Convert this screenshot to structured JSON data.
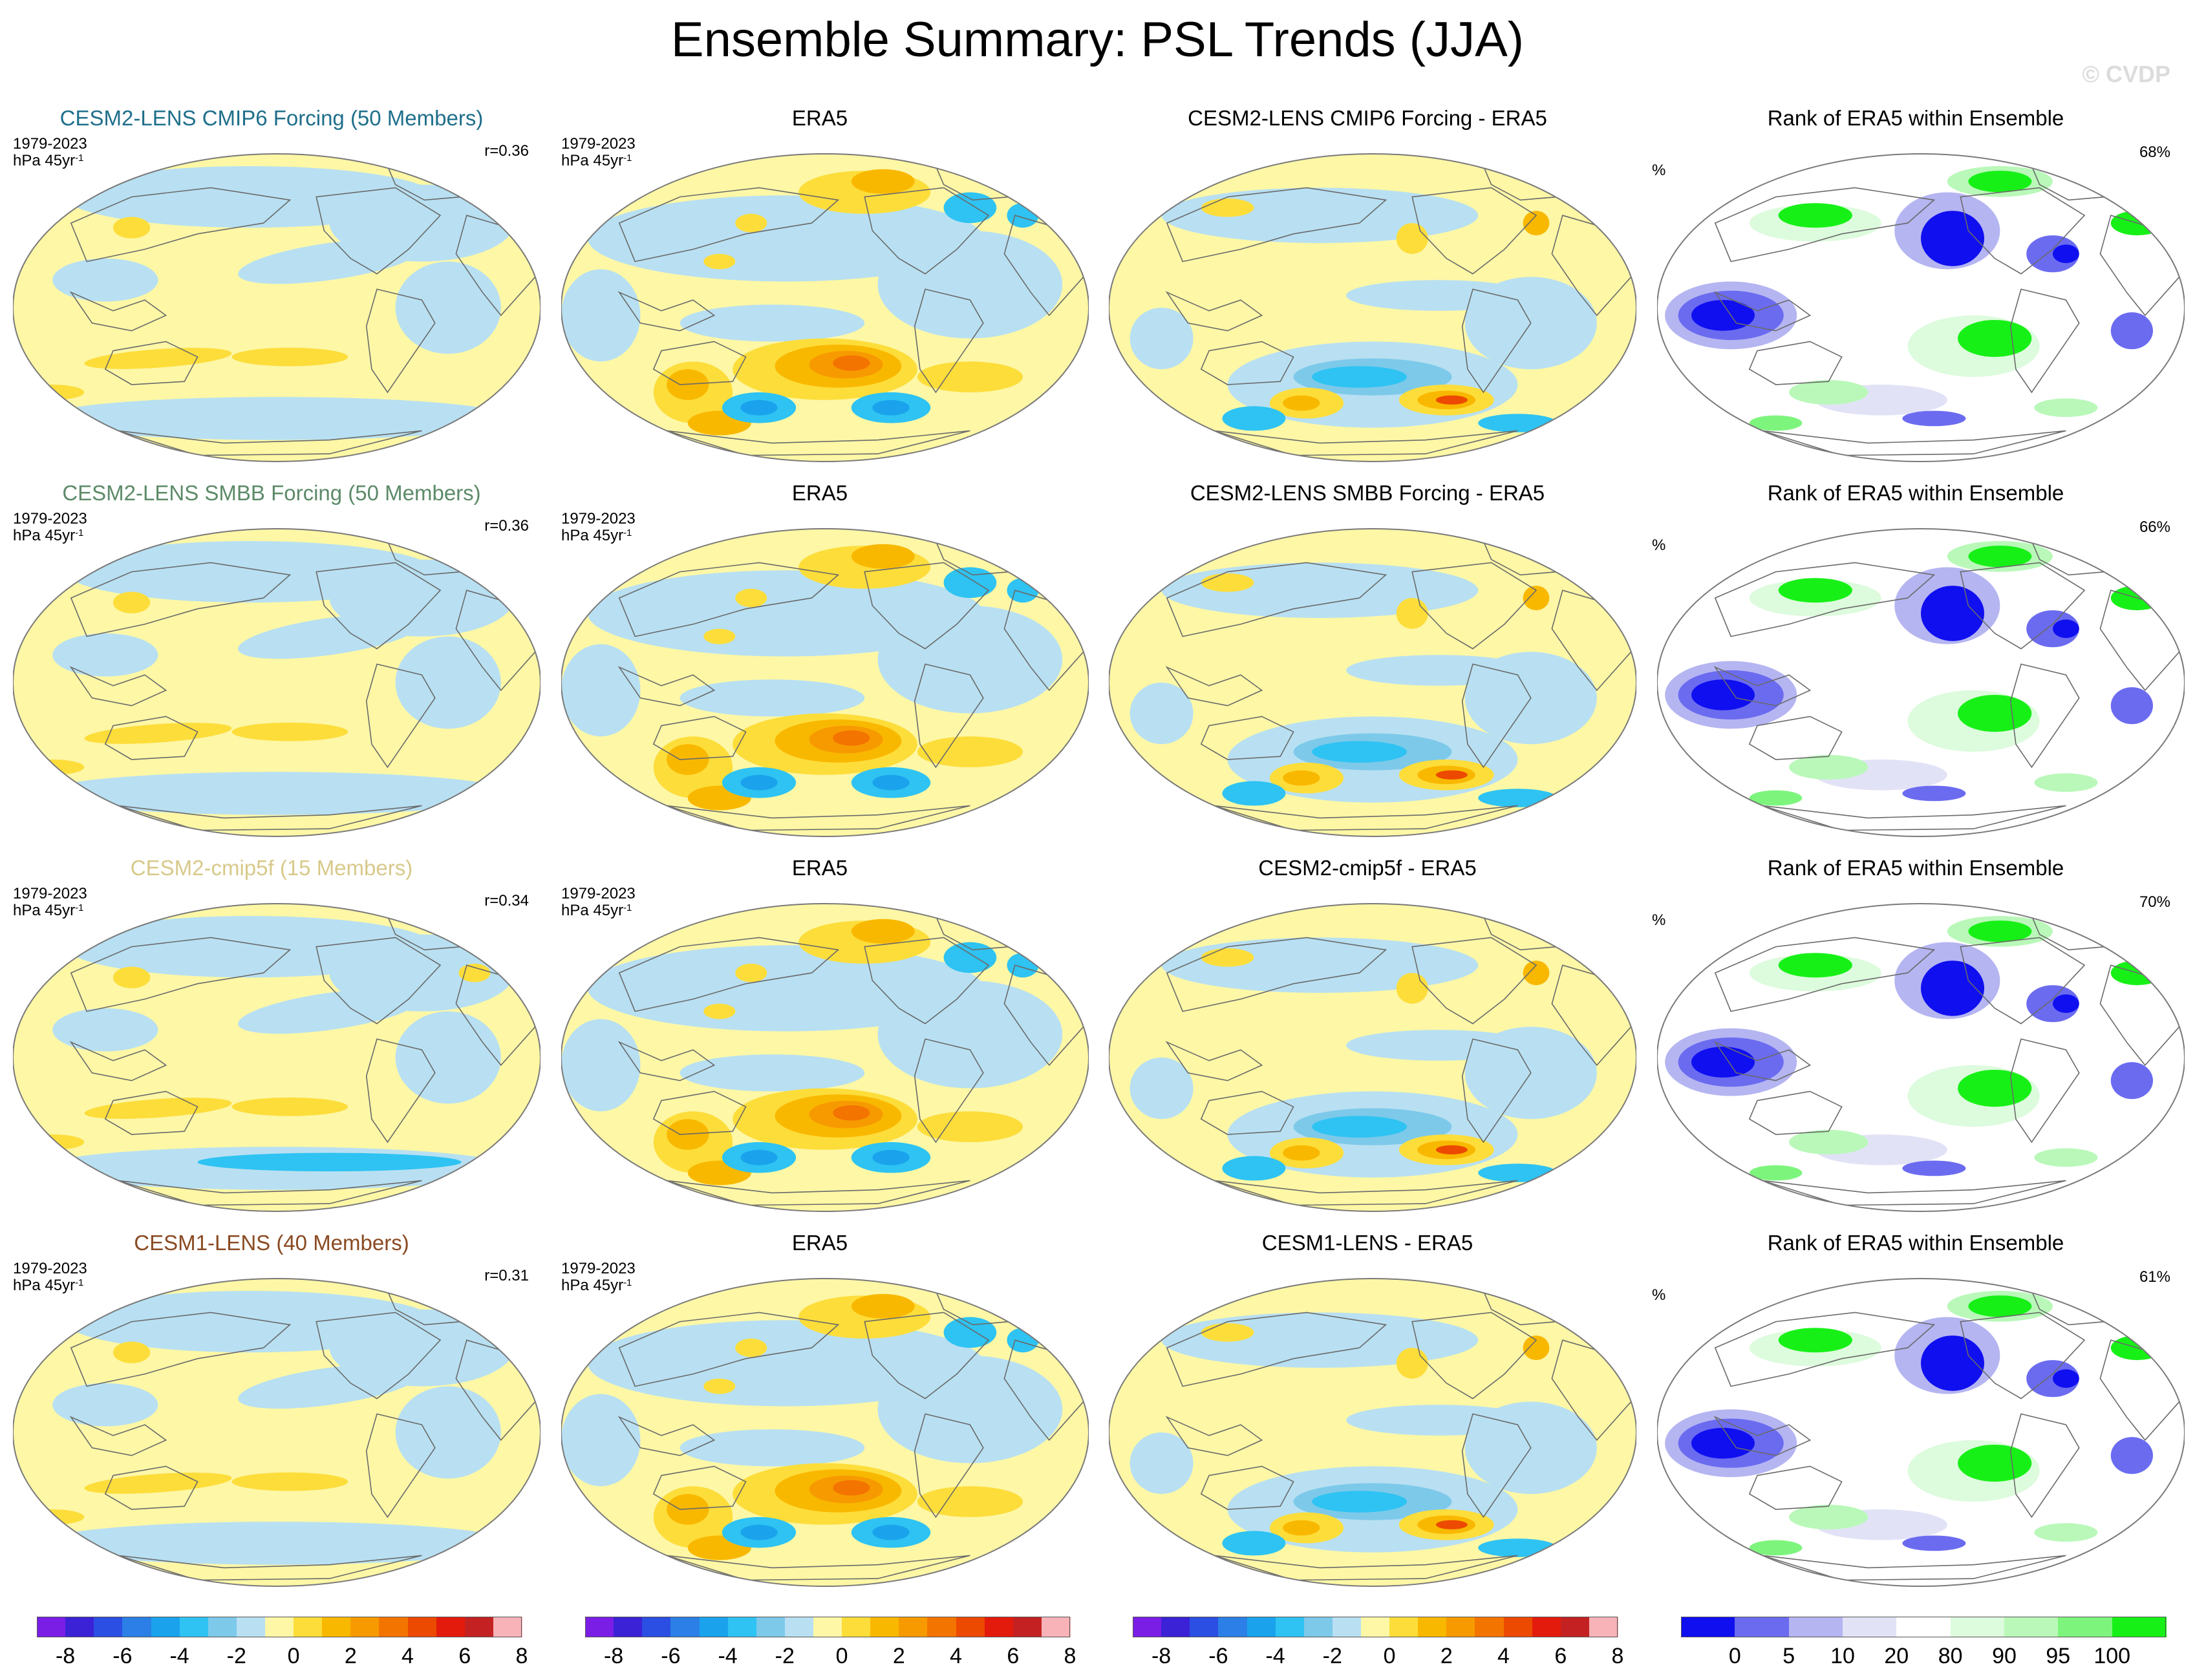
{
  "title": "Ensemble Summary: PSL Trends (JJA)",
  "watermark": "© CVDP",
  "rows": [
    {
      "model": {
        "label": "CESM2-LENS CMIP6 Forcing (50 Members)",
        "color": "#1f6f8b",
        "years": "1979-2023",
        "units": "hPa 45yr",
        "units_exp": "-1",
        "r": "r=0.36"
      },
      "obs": {
        "label": "ERA5",
        "years": "1979-2023",
        "units": "hPa 45yr",
        "units_exp": "-1"
      },
      "diff": {
        "label": "CESM2-LENS CMIP6 Forcing - ERA5"
      },
      "rank": {
        "label": "Rank of ERA5 within Ensemble",
        "unit": "%",
        "value": "68%"
      }
    },
    {
      "model": {
        "label": "CESM2-LENS SMBB Forcing (50 Members)",
        "color": "#5d8a68",
        "years": "1979-2023",
        "units": "hPa 45yr",
        "units_exp": "-1",
        "r": "r=0.36"
      },
      "obs": {
        "label": "ERA5",
        "years": "1979-2023",
        "units": "hPa 45yr",
        "units_exp": "-1"
      },
      "diff": {
        "label": "CESM2-LENS SMBB Forcing - ERA5"
      },
      "rank": {
        "label": "Rank of ERA5 within Ensemble",
        "unit": "%",
        "value": "66%"
      }
    },
    {
      "model": {
        "label": "CESM2-cmip5f (15 Members)",
        "color": "#d8c98a",
        "years": "1979-2023",
        "units": "hPa 45yr",
        "units_exp": "-1",
        "r": "r=0.34"
      },
      "obs": {
        "label": "ERA5",
        "years": "1979-2023",
        "units": "hPa 45yr",
        "units_exp": "-1"
      },
      "diff": {
        "label": "CESM2-cmip5f - ERA5"
      },
      "rank": {
        "label": "Rank of ERA5 within Ensemble",
        "unit": "%",
        "value": "70%"
      }
    },
    {
      "model": {
        "label": "CESM1-LENS (40 Members)",
        "color": "#8a4a22",
        "years": "1979-2023",
        "units": "hPa 45yr",
        "units_exp": "-1",
        "r": "r=0.31"
      },
      "obs": {
        "label": "ERA5",
        "years": "1979-2023",
        "units": "hPa 45yr",
        "units_exp": "-1"
      },
      "diff": {
        "label": "CESM1-LENS - ERA5"
      },
      "rank": {
        "label": "Rank of ERA5 within Ensemble",
        "unit": "%",
        "value": "61%"
      }
    }
  ],
  "trend_colorbar": {
    "colors": [
      "#7a1ee6",
      "#3b22d6",
      "#2b4ee3",
      "#2b7fe6",
      "#1aa3ec",
      "#2ec3f2",
      "#7dc9ea",
      "#b8e0f2",
      "#fdf7a6",
      "#fddd3a",
      "#f9b800",
      "#f79a00",
      "#f47400",
      "#ec4a00",
      "#e31b0d",
      "#c42222",
      "#f7b3b8"
    ],
    "ticks": [
      "-8",
      "-6",
      "-4",
      "-2",
      "0",
      "2",
      "4",
      "6",
      "8"
    ]
  },
  "rank_colorbar": {
    "colors": [
      "#0f0ff0",
      "#6b6bf0",
      "#b5b5f2",
      "#e2e2f7",
      "#ffffff",
      "#ddfbdd",
      "#b9f8b9",
      "#7df57d",
      "#17f017"
    ],
    "ticks": [
      "0",
      "5",
      "10",
      "20",
      "80",
      "90",
      "95",
      "100"
    ]
  }
}
